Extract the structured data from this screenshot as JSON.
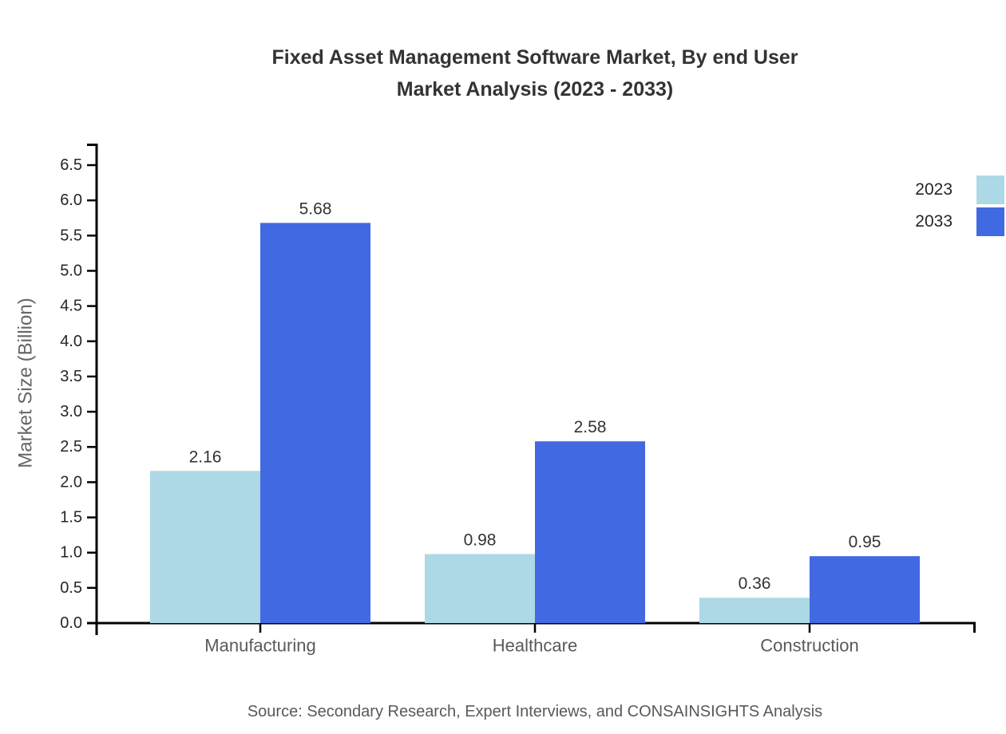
{
  "title": {
    "line1": "Fixed Asset Management Software Market, By end User",
    "line2": "Market Analysis (2023 - 2033)"
  },
  "source_note": "Source: Secondary Research, Expert Interviews, and CONSAINSIGHTS Analysis",
  "chart_data": {
    "type": "bar",
    "title": "Fixed Asset Management Software Market, By end User Market Analysis (2023 - 2033)",
    "categories": [
      "Manufacturing",
      "Healthcare",
      "Construction"
    ],
    "series": [
      {
        "name": "2023",
        "color": "#ADD8E6",
        "values": [
          2.16,
          0.98,
          0.36
        ]
      },
      {
        "name": "2033",
        "color": "#4169E1",
        "values": [
          5.68,
          2.58,
          0.95
        ]
      }
    ],
    "xlabel": "",
    "ylabel": "Market Size (Billion)",
    "ylim": [
      0.0,
      6.5
    ],
    "ytick_step": 0.5,
    "ytick_labels": [
      "0.0",
      "0.5",
      "1.0",
      "1.5",
      "2.0",
      "2.5",
      "3.0",
      "3.5",
      "4.0",
      "4.5",
      "5.0",
      "5.5",
      "6.0",
      "6.5"
    ],
    "grid": false,
    "legend_position": "top-right",
    "value_label_format": "2-decimals"
  },
  "colors": {
    "bar_2023": "#ADD8E6",
    "bar_2033": "#4169E1",
    "axis_line": "#000000",
    "title_text": "#333333",
    "tick_text": "#262626",
    "value_label_text": "#333333",
    "category_text": "#595959",
    "ylabel_text": "#666666",
    "source_text": "#595959"
  }
}
